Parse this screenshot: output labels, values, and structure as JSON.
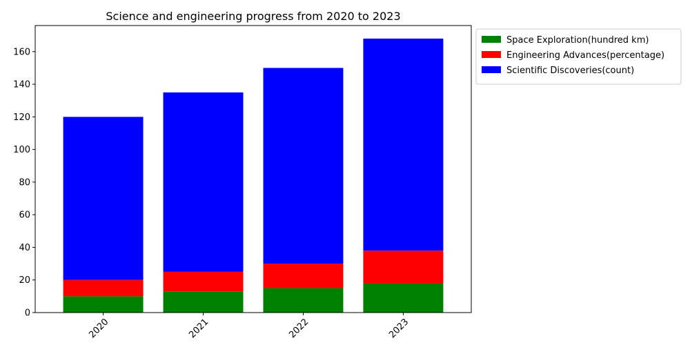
{
  "chart_data": {
    "type": "bar",
    "stacked": true,
    "title": "Science and engineering progress from 2020 to 2023",
    "xlabel": "",
    "ylabel": "",
    "categories": [
      "2020",
      "2021",
      "2022",
      "2023"
    ],
    "series": [
      {
        "name": "Space Exploration(hundred km)",
        "color": "#008000",
        "values": [
          10,
          13,
          15,
          18
        ]
      },
      {
        "name": "Engineering Advances(percentage)",
        "color": "#ff0000",
        "values": [
          10,
          12,
          15,
          20
        ]
      },
      {
        "name": "Scientific Discoveries(count)",
        "color": "#0000ff",
        "values": [
          100,
          110,
          120,
          130
        ]
      }
    ],
    "ylim": [
      0,
      176
    ],
    "yticks": [
      0,
      20,
      40,
      60,
      80,
      100,
      120,
      140,
      160
    ],
    "grid": false,
    "legend_position": "outside-top-right",
    "xtick_rotation": 45
  }
}
